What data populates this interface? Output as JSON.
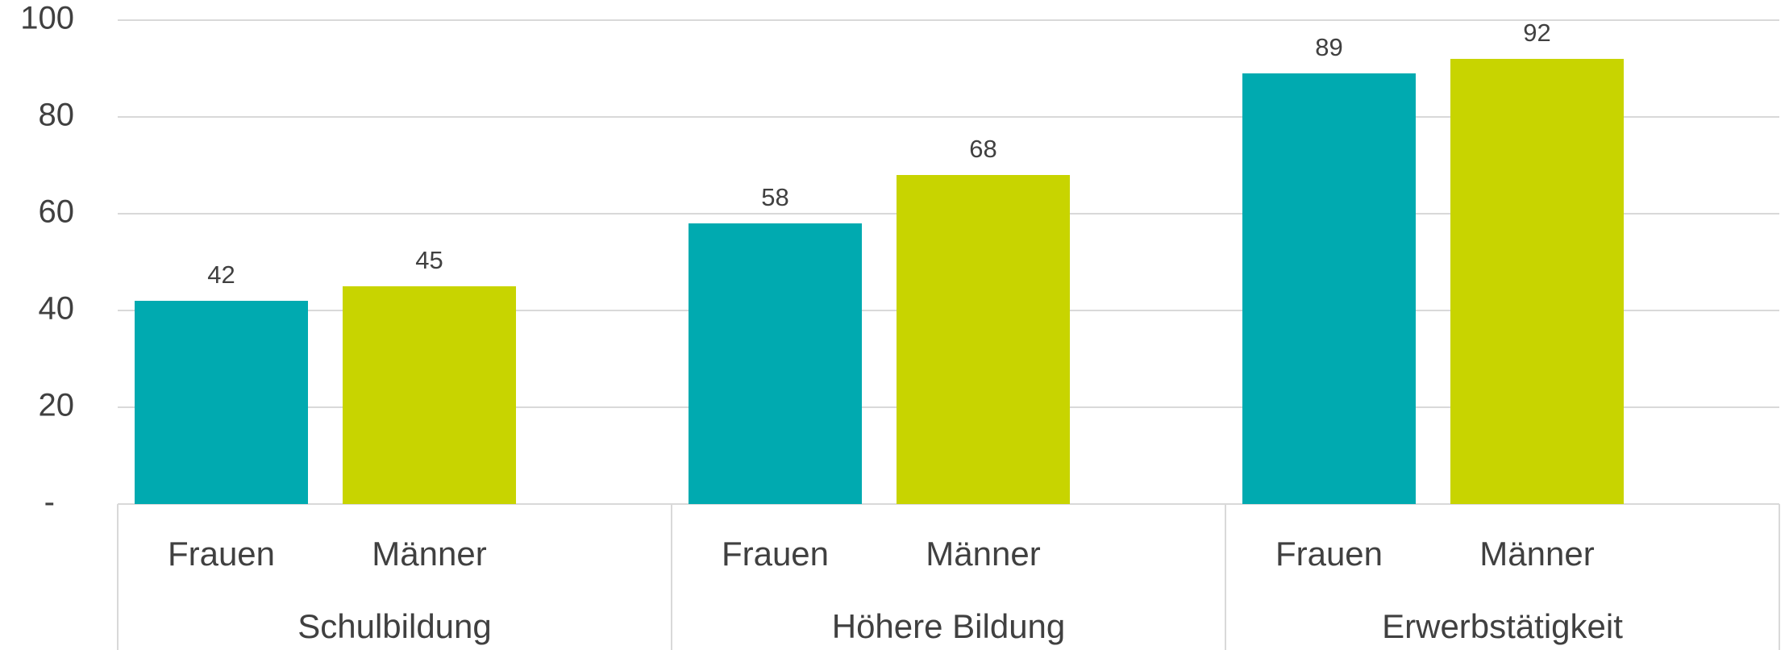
{
  "chart_data": {
    "type": "bar",
    "groups": [
      "Schulbildung",
      "Höhere Bildung",
      "Erwerbstätigkeit"
    ],
    "series": [
      {
        "name": "Frauen",
        "color": "#00aab0",
        "values": [
          42,
          58,
          89
        ]
      },
      {
        "name": "Männer",
        "color": "#c8d400",
        "values": [
          45,
          68,
          92
        ]
      }
    ],
    "ylim": [
      0,
      100
    ],
    "yticks": [
      {
        "value": 0,
        "label": "-"
      },
      20,
      40,
      60,
      80,
      100
    ],
    "grid": true
  }
}
